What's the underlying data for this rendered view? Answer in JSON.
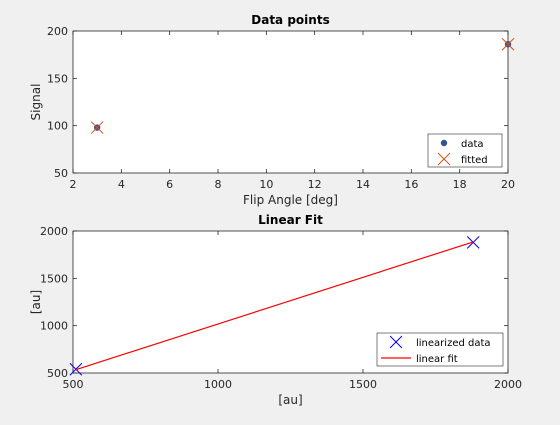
{
  "figure": {
    "background": "#f0f0f0"
  },
  "chart_data": [
    {
      "type": "scatter",
      "title": "Data points",
      "xlabel": "Flip Angle [deg]",
      "ylabel": "Signal",
      "xlim": [
        2,
        20
      ],
      "ylim": [
        50,
        200
      ],
      "xticks": [
        2,
        4,
        6,
        8,
        10,
        12,
        14,
        16,
        18,
        20
      ],
      "yticks": [
        50,
        100,
        150,
        200
      ],
      "grid": false,
      "legend_position": "bottom-right",
      "series": [
        {
          "name": "data",
          "marker": "filled-circle",
          "color": "#2f5597",
          "x": [
            3,
            20
          ],
          "y": [
            98,
            186
          ]
        },
        {
          "name": "fitted",
          "marker": "x",
          "color": "#d95319",
          "x": [
            3,
            20
          ],
          "y": [
            98,
            186
          ]
        }
      ]
    },
    {
      "type": "line",
      "title": "Linear Fit",
      "xlabel": "[au]",
      "ylabel": "[au]",
      "xlim": [
        500,
        2000
      ],
      "ylim": [
        500,
        2000
      ],
      "xticks": [
        500,
        1000,
        1500,
        2000
      ],
      "yticks": [
        500,
        1000,
        1500,
        2000
      ],
      "grid": false,
      "legend_position": "bottom-right",
      "series": [
        {
          "name": "linearized data",
          "marker": "x",
          "line": false,
          "color": "#0000ff",
          "x": [
            510,
            1880
          ],
          "y": [
            540,
            1880
          ]
        },
        {
          "name": "linear fit",
          "marker": "none",
          "line": true,
          "color": "#ff0000",
          "x": [
            510,
            1880
          ],
          "y": [
            535,
            1885
          ]
        }
      ]
    }
  ]
}
